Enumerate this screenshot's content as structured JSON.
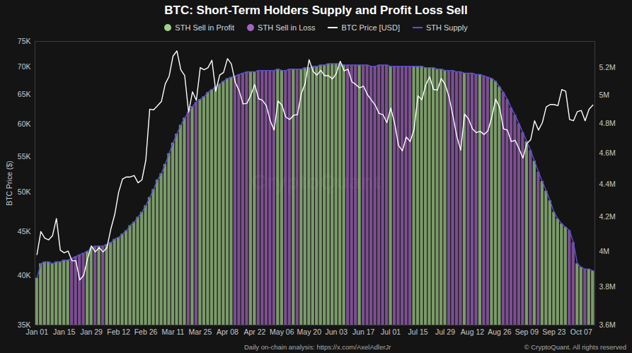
{
  "chart_data": {
    "type": "bar",
    "title": "BTC: Short-Term Holders Supply and Profit Loss Sell",
    "ylabel": "BTC Price ($)",
    "watermark": "CryptoQuant",
    "caption": "Daily on-chain analysis: https://x.com/AxelAdlerJr",
    "credit": "© CryptoQuant. All rights reserved",
    "log": "y",
    "grid": false,
    "legend": "top",
    "stacked": false,
    "categories": [
      "Jan 01",
      null,
      null,
      null,
      null,
      null,
      null,
      "Jan 15",
      null,
      null,
      null,
      null,
      null,
      null,
      "Jan 29",
      null,
      null,
      null,
      null,
      null,
      null,
      "Feb 12",
      null,
      null,
      null,
      null,
      null,
      null,
      "Feb 26",
      null,
      null,
      null,
      null,
      null,
      null,
      "Mar 11",
      null,
      null,
      null,
      null,
      null,
      null,
      "Mar 25",
      null,
      null,
      null,
      null,
      null,
      null,
      "Apr 08",
      null,
      null,
      null,
      null,
      null,
      null,
      "Apr 22",
      null,
      null,
      null,
      null,
      null,
      null,
      "May 06",
      null,
      null,
      null,
      null,
      null,
      null,
      "May 20",
      null,
      null,
      null,
      null,
      null,
      null,
      "Jun 03",
      null,
      null,
      null,
      null,
      null,
      null,
      "Jun 17",
      null,
      null,
      null,
      null,
      null,
      null,
      "Jul 01",
      null,
      null,
      null,
      null,
      null,
      null,
      "Jul 15",
      null,
      null,
      null,
      null,
      null,
      null,
      "Jul 29",
      null,
      null,
      null,
      null,
      null,
      null,
      "Aug 12",
      null,
      null,
      null,
      null,
      null,
      null,
      "Aug 26",
      null,
      null,
      null,
      null,
      null,
      null,
      "Sep 09",
      null,
      null,
      null,
      null,
      null,
      null,
      "Sep 23",
      null,
      null,
      null,
      null,
      null,
      null,
      "Oct 07",
      null,
      null,
      null
    ],
    "ylim": [
      35000,
      75000
    ],
    "yticks": [
      {
        "value": 35000,
        "label": "35K"
      },
      {
        "value": 40000,
        "label": "40K"
      },
      {
        "value": 45000,
        "label": "45K"
      },
      {
        "value": 50000,
        "label": "50K"
      },
      {
        "value": 55000,
        "label": "55K"
      },
      {
        "value": 60000,
        "label": "60K"
      },
      {
        "value": 65000,
        "label": "65K"
      },
      {
        "value": 70000,
        "label": "70K"
      },
      {
        "value": 75000,
        "label": "75K"
      }
    ],
    "y2lim": [
      3600000,
      5400000
    ],
    "y2ticks": [
      {
        "value": 3600000,
        "label": "3.6M"
      },
      {
        "value": 3800000,
        "label": "3.8M"
      },
      {
        "value": 4000000,
        "label": "4M"
      },
      {
        "value": 4200000,
        "label": "4.2M"
      },
      {
        "value": 4400000,
        "label": "4.4M"
      },
      {
        "value": 4600000,
        "label": "4.6M"
      },
      {
        "value": 4800000,
        "label": "4.8M"
      },
      {
        "value": 5000000,
        "label": "5M"
      },
      {
        "value": 5200000,
        "label": "5.2M"
      }
    ],
    "series": [
      {
        "name": "STH Sell in Profit",
        "type": "bar",
        "axis": "y2",
        "color": "#a3cf8c",
        "values": [
          3850000,
          3930000,
          3940000,
          3940000,
          3930000,
          3940000,
          3940000,
          3950000,
          3950000,
          null,
          null,
          null,
          null,
          4000000,
          4020000,
          null,
          4030000,
          null,
          4040000,
          4050000,
          4070000,
          4080000,
          4100000,
          4120000,
          4150000,
          4170000,
          4200000,
          4230000,
          4270000,
          4320000,
          4370000,
          4430000,
          4470000,
          4530000,
          4600000,
          4670000,
          4730000,
          4790000,
          4840000,
          null,
          4920000,
          null,
          4970000,
          4990000,
          5020000,
          5040000,
          5060000,
          5080000,
          5100000,
          5120000,
          5130000,
          null,
          null,
          null,
          null,
          5170000,
          5170000,
          null,
          null,
          null,
          null,
          null,
          5190000,
          5180000,
          null,
          null,
          5190000,
          null,
          5190000,
          5200000,
          5200000,
          5210000,
          5210000,
          5220000,
          5220000,
          5230000,
          5230000,
          5230000,
          5230000,
          5220000,
          null,
          null,
          null,
          5220000,
          null,
          null,
          null,
          null,
          null,
          null,
          null,
          5210000,
          null,
          null,
          null,
          null,
          null,
          5210000,
          5210000,
          5210000,
          5200000,
          5200000,
          5200000,
          5190000,
          5190000,
          5180000,
          null,
          null,
          null,
          null,
          5160000,
          null,
          null,
          null,
          5150000,
          null,
          null,
          5120000,
          5100000,
          5060000,
          null,
          null,
          null,
          null,
          null,
          null,
          4680000,
          null,
          4550000,
          null,
          4420000,
          4360000,
          4300000,
          4230000,
          4190000,
          4160000,
          4140000,
          null,
          null,
          3930000,
          3910000,
          null,
          3900000,
          3890000
        ]
      },
      {
        "name": "STH Sell in Loss",
        "type": "bar",
        "axis": "y2",
        "color": "#a266c0",
        "values": [
          null,
          null,
          null,
          null,
          null,
          null,
          null,
          null,
          null,
          3960000,
          3970000,
          3980000,
          3990000,
          null,
          null,
          4030000,
          null,
          4030000,
          null,
          null,
          null,
          null,
          null,
          null,
          null,
          null,
          null,
          null,
          null,
          null,
          null,
          null,
          null,
          null,
          null,
          null,
          null,
          null,
          null,
          4880000,
          null,
          4950000,
          null,
          null,
          null,
          null,
          null,
          null,
          null,
          null,
          null,
          5140000,
          5150000,
          5160000,
          5170000,
          null,
          null,
          5180000,
          5180000,
          5180000,
          5180000,
          5180000,
          null,
          null,
          5180000,
          5190000,
          null,
          5190000,
          null,
          null,
          null,
          null,
          null,
          null,
          null,
          null,
          null,
          null,
          null,
          null,
          5220000,
          5220000,
          5220000,
          null,
          5220000,
          5220000,
          5210000,
          5210000,
          5220000,
          5220000,
          5220000,
          null,
          5210000,
          5210000,
          5210000,
          5210000,
          5210000,
          null,
          null,
          null,
          null,
          null,
          null,
          null,
          null,
          null,
          5180000,
          5180000,
          5170000,
          5170000,
          null,
          5160000,
          5160000,
          5150000,
          null,
          5140000,
          5130000,
          null,
          null,
          null,
          5020000,
          4970000,
          4910000,
          4860000,
          4800000,
          4740000,
          null,
          4620000,
          null,
          4480000,
          null,
          null,
          null,
          null,
          null,
          null,
          null,
          4120000,
          4050000,
          null,
          null,
          3900000,
          null,
          null
        ]
      },
      {
        "name": "BTC Price [USD]",
        "type": "line",
        "color": "#ffffff",
        "values": [
          42300,
          45000,
          44200,
          44000,
          44500,
          46600,
          42800,
          42500,
          42700,
          41600,
          41600,
          39500,
          40000,
          41800,
          43300,
          42600,
          43100,
          42600,
          43100,
          45300,
          47100,
          50000,
          51800,
          52100,
          52100,
          52300,
          51300,
          51700,
          54500,
          62500,
          62400,
          63100,
          63800,
          66900,
          68300,
          72100,
          73100,
          69500,
          68400,
          62000,
          65500,
          64000,
          69900,
          69500,
          69900,
          71300,
          65600,
          68500,
          69000,
          71600,
          70600,
          67200,
          65700,
          63400,
          63500,
          64900,
          66800,
          64300,
          64000,
          63100,
          60600,
          59100,
          63900,
          63200,
          61200,
          60800,
          61500,
          61600,
          65200,
          67000,
          71400,
          69200,
          68500,
          69400,
          68400,
          68400,
          67800,
          68800,
          71100,
          69300,
          69600,
          67300,
          66800,
          66200,
          66500,
          65000,
          64100,
          63200,
          61800,
          61600,
          60300,
          62700,
          60200,
          56700,
          55900,
          58000,
          57300,
          59200,
          64800,
          64100,
          66700,
          68200,
          65900,
          65800,
          67900,
          66800,
          64600,
          61400,
          58100,
          56000,
          61700,
          60900,
          59300,
          58700,
          58900,
          58400,
          59000,
          61200,
          64200,
          62800,
          59300,
          59100,
          57300,
          57500,
          56200,
          54800,
          57000,
          57600,
          60600,
          59100,
          60300,
          62900,
          63300,
          63300,
          63100,
          65900,
          65600,
          60800,
          60600,
          62100,
          62300,
          60600,
          62500,
          63200
        ]
      },
      {
        "name": "STH Supply",
        "type": "line",
        "axis": "y2",
        "color": "#5a52d6",
        "values": [
          3850000,
          3930000,
          3940000,
          3940000,
          3930000,
          3940000,
          3940000,
          3950000,
          3950000,
          3960000,
          3970000,
          3980000,
          3990000,
          4000000,
          4020000,
          4030000,
          4030000,
          4030000,
          4040000,
          4050000,
          4070000,
          4080000,
          4100000,
          4120000,
          4150000,
          4170000,
          4200000,
          4230000,
          4270000,
          4320000,
          4370000,
          4430000,
          4470000,
          4530000,
          4600000,
          4670000,
          4730000,
          4790000,
          4840000,
          4880000,
          4920000,
          4950000,
          4970000,
          4990000,
          5020000,
          5040000,
          5060000,
          5080000,
          5100000,
          5120000,
          5130000,
          5140000,
          5150000,
          5160000,
          5170000,
          5170000,
          5170000,
          5180000,
          5180000,
          5180000,
          5180000,
          5180000,
          5190000,
          5180000,
          5180000,
          5190000,
          5190000,
          5190000,
          5190000,
          5200000,
          5200000,
          5210000,
          5210000,
          5220000,
          5220000,
          5230000,
          5230000,
          5230000,
          5230000,
          5220000,
          5220000,
          5220000,
          5220000,
          5220000,
          5220000,
          5220000,
          5210000,
          5210000,
          5220000,
          5220000,
          5220000,
          5210000,
          5210000,
          5210000,
          5210000,
          5210000,
          5210000,
          5210000,
          5210000,
          5210000,
          5200000,
          5200000,
          5200000,
          5190000,
          5190000,
          5180000,
          5180000,
          5180000,
          5170000,
          5170000,
          5160000,
          5160000,
          5160000,
          5150000,
          5150000,
          5140000,
          5130000,
          5120000,
          5100000,
          5060000,
          5020000,
          4970000,
          4910000,
          4860000,
          4800000,
          4740000,
          4680000,
          4620000,
          4550000,
          4480000,
          4420000,
          4360000,
          4300000,
          4230000,
          4190000,
          4160000,
          4140000,
          4120000,
          4050000,
          3930000,
          3910000,
          3900000,
          3900000,
          3890000
        ]
      }
    ]
  }
}
